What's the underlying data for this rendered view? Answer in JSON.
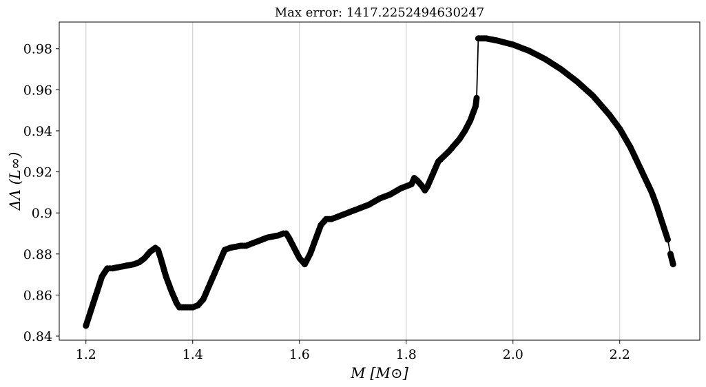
{
  "chart_data": {
    "type": "line",
    "title": "Max error: 1417.2252494630247",
    "xlabel": "M [M⊙]",
    "ylabel": "ΔΛ (L∞)",
    "xlim": [
      1.15,
      2.35
    ],
    "ylim": [
      0.838,
      0.993
    ],
    "x_ticks": [
      1.2,
      1.4,
      1.6,
      1.8,
      2.0,
      2.2
    ],
    "x_tick_labels": [
      "1.2",
      "1.4",
      "1.6",
      "1.8",
      "2.0",
      "2.2"
    ],
    "y_ticks": [
      0.84,
      0.86,
      0.88,
      0.9,
      0.92,
      0.94,
      0.96,
      0.98
    ],
    "y_tick_labels": [
      "0.84",
      "0.86",
      "0.88",
      "0.9",
      "0.92",
      "0.94",
      "0.96",
      "0.98"
    ],
    "grid": "vertical",
    "line_color": "#000000",
    "marker": "circle",
    "x": [
      1.2,
      1.21,
      1.22,
      1.23,
      1.24,
      1.245,
      1.25,
      1.27,
      1.29,
      1.3,
      1.31,
      1.32,
      1.33,
      1.335,
      1.34,
      1.35,
      1.36,
      1.37,
      1.375,
      1.38,
      1.39,
      1.4,
      1.41,
      1.42,
      1.43,
      1.44,
      1.45,
      1.455,
      1.46,
      1.47,
      1.49,
      1.5,
      1.52,
      1.54,
      1.56,
      1.57,
      1.575,
      1.58,
      1.59,
      1.6,
      1.61,
      1.62,
      1.63,
      1.64,
      1.65,
      1.66,
      1.67,
      1.69,
      1.71,
      1.73,
      1.75,
      1.77,
      1.79,
      1.81,
      1.815,
      1.82,
      1.83,
      1.835,
      1.84,
      1.85,
      1.855,
      1.86,
      1.88,
      1.9,
      1.91,
      1.92,
      1.93,
      1.932,
      1.935,
      1.95,
      1.97,
      2.0,
      2.03,
      2.06,
      2.09,
      2.12,
      2.15,
      2.18,
      2.2,
      2.22,
      2.24,
      2.26,
      2.27,
      2.28,
      2.29,
      2.295,
      2.3
    ],
    "y": [
      0.845,
      0.853,
      0.861,
      0.869,
      0.873,
      0.873,
      0.873,
      0.874,
      0.875,
      0.876,
      0.878,
      0.881,
      0.883,
      0.882,
      0.878,
      0.869,
      0.862,
      0.856,
      0.854,
      0.854,
      0.854,
      0.854,
      0.855,
      0.858,
      0.864,
      0.87,
      0.876,
      0.879,
      0.882,
      0.883,
      0.884,
      0.884,
      0.886,
      0.888,
      0.889,
      0.89,
      0.89,
      0.888,
      0.883,
      0.878,
      0.875,
      0.88,
      0.887,
      0.894,
      0.897,
      0.897,
      0.898,
      0.9,
      0.902,
      0.904,
      0.907,
      0.909,
      0.912,
      0.914,
      0.917,
      0.916,
      0.913,
      0.911,
      0.913,
      0.919,
      0.922,
      0.925,
      0.93,
      0.936,
      0.94,
      0.945,
      0.952,
      0.956,
      0.985,
      0.985,
      0.984,
      0.982,
      0.979,
      0.975,
      0.97,
      0.964,
      0.957,
      0.948,
      0.941,
      0.932,
      0.921,
      0.91,
      0.903,
      0.895,
      0.887,
      0.88,
      0.875
    ]
  }
}
